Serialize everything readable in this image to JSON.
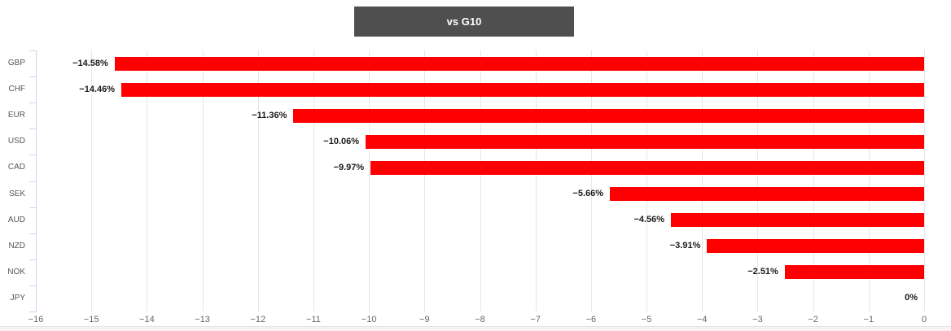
{
  "title": {
    "label": "vs G10"
  },
  "colors": {
    "bar": "#ff0000",
    "title_bg": "#4f4f4f",
    "title_text": "#ffffff",
    "grid": "#e6e6e6",
    "axis_line": "#ccd6eb",
    "tick_label": "#666666",
    "category_label": "#555555",
    "value_label": "#1a1a1a",
    "footer_strip": "#f9f3f4"
  },
  "chart_data": {
    "type": "bar",
    "orientation": "horizontal",
    "title": "vs G10",
    "categories": [
      "GBP",
      "CHF",
      "EUR",
      "USD",
      "CAD",
      "SEK",
      "AUD",
      "NZD",
      "NOK",
      "JPY"
    ],
    "values": [
      -14.58,
      -14.46,
      -11.36,
      -10.06,
      -9.97,
      -5.66,
      -4.56,
      -3.91,
      -2.51,
      0
    ],
    "value_labels": [
      "−14.58%",
      "−14.46%",
      "−11.36%",
      "−10.06%",
      "−9.97%",
      "−5.66%",
      "−4.56%",
      "−3.91%",
      "−2.51%",
      "0%"
    ],
    "xlim": [
      -16,
      0
    ],
    "x_ticks": [
      -16,
      -15,
      -14,
      -13,
      -12,
      -11,
      -10,
      -9,
      -8,
      -7,
      -6,
      -5,
      -4,
      -3,
      -2,
      -1,
      0
    ],
    "x_tick_labels": [
      "−16",
      "−15",
      "−14",
      "−13",
      "−12",
      "−11",
      "−10",
      "−9",
      "−8",
      "−7",
      "−6",
      "−5",
      "−4",
      "−3",
      "−2",
      "−1",
      "0"
    ],
    "grid": "on",
    "legend": "none"
  }
}
